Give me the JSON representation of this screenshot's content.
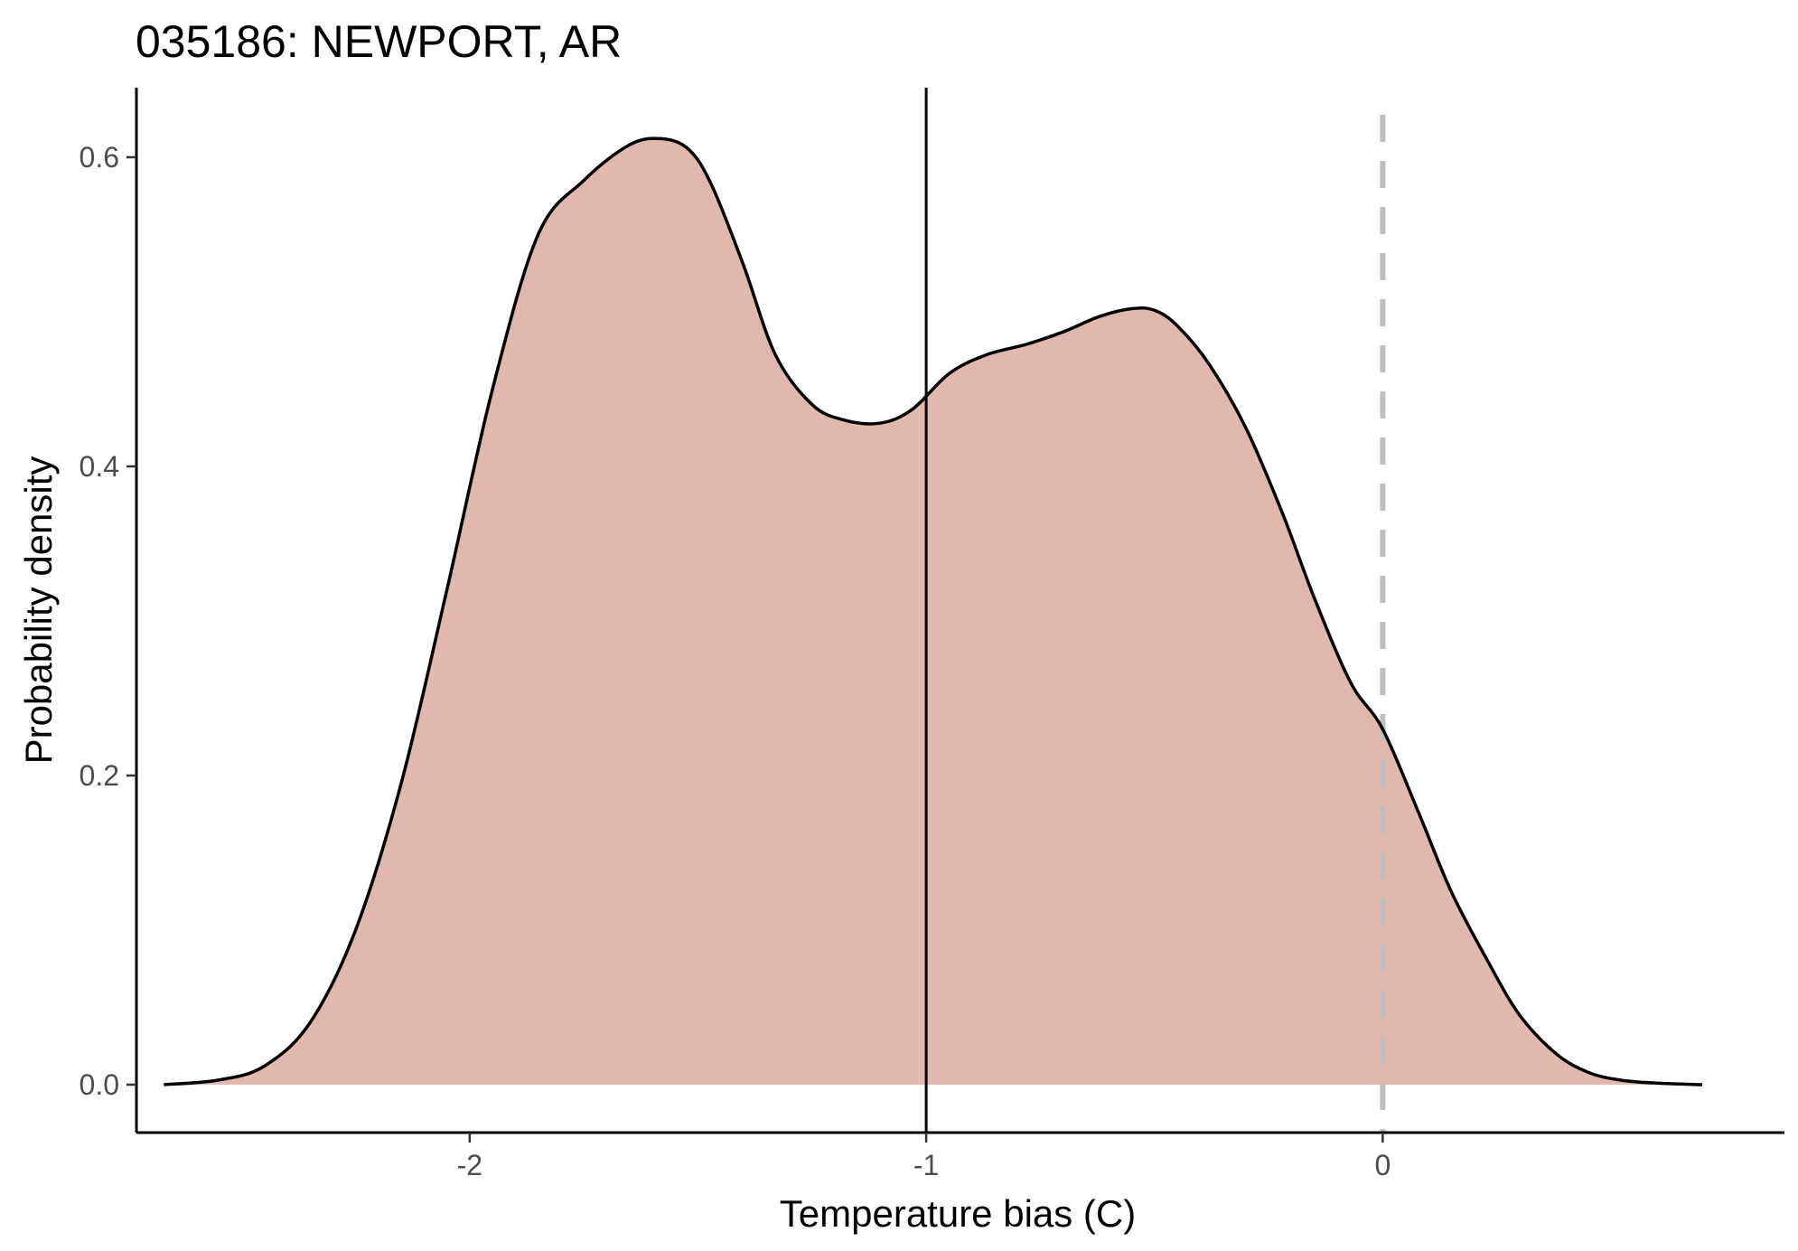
{
  "chart_data": {
    "type": "area",
    "title": "035186: NEWPORT, AR",
    "xlabel": "Temperature bias (C)",
    "ylabel": "Probability density",
    "xlim": [
      -2.73,
      0.88
    ],
    "ylim": [
      -0.031,
      0.645
    ],
    "x_ticks": [
      -2,
      -1,
      0
    ],
    "x_tick_labels": [
      "-2",
      "-1",
      "0"
    ],
    "y_ticks": [
      0.0,
      0.2,
      0.4,
      0.6
    ],
    "y_tick_labels": [
      "0.0",
      "0.2",
      "0.4",
      "0.6"
    ],
    "grid": false,
    "legend": "none",
    "series": [
      {
        "x": [
          -2.67,
          -2.55,
          -2.45,
          -2.35,
          -2.25,
          -2.15,
          -2.05,
          -1.95,
          -1.85,
          -1.75,
          -1.65,
          -1.58,
          -1.52,
          -1.47,
          -1.4,
          -1.33,
          -1.25,
          -1.18,
          -1.1,
          -1.03,
          -0.95,
          -0.87,
          -0.78,
          -0.7,
          -0.62,
          -0.55,
          -0.5,
          -0.45,
          -0.38,
          -0.3,
          -0.22,
          -0.15,
          -0.07,
          0.0,
          0.08,
          0.15,
          0.23,
          0.3,
          0.38,
          0.45,
          0.52,
          0.6,
          0.7
        ],
        "y": [
          0.0,
          0.003,
          0.012,
          0.04,
          0.1,
          0.195,
          0.32,
          0.45,
          0.55,
          0.585,
          0.608,
          0.612,
          0.605,
          0.582,
          0.53,
          0.472,
          0.44,
          0.43,
          0.428,
          0.437,
          0.46,
          0.472,
          0.479,
          0.487,
          0.497,
          0.502,
          0.501,
          0.491,
          0.466,
          0.425,
          0.37,
          0.315,
          0.26,
          0.23,
          0.175,
          0.125,
          0.08,
          0.045,
          0.02,
          0.008,
          0.003,
          0.001,
          0.0
        ]
      }
    ],
    "vlines": [
      {
        "x": -1.0,
        "style": "solid",
        "color": "#000000"
      },
      {
        "x": 0.0,
        "style": "dashed",
        "color": "#bebebe"
      }
    ],
    "fill_color": "#e0b8ae",
    "line_color": "#000000"
  }
}
